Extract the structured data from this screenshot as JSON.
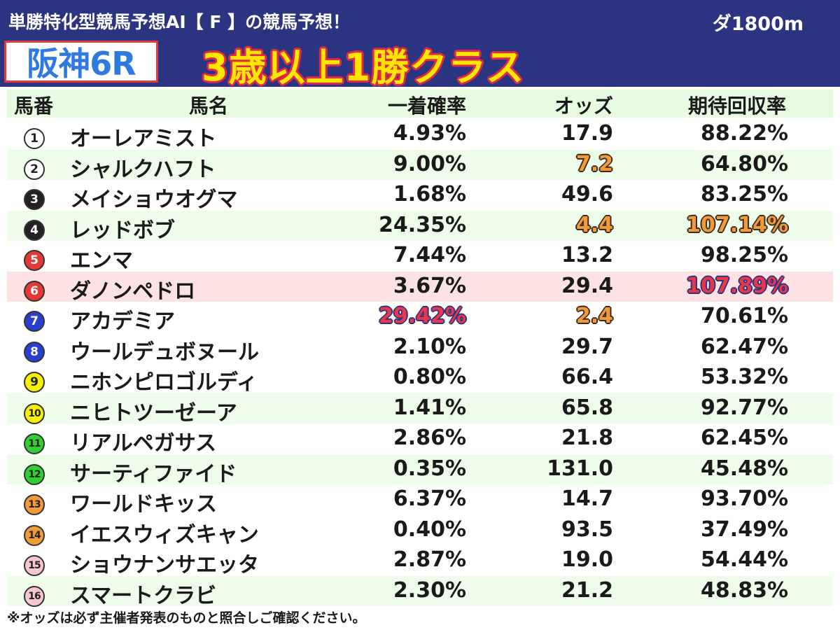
{
  "header": {
    "subtitle": "単勝特化型競馬予想AI【 F 】の競馬予想！",
    "distance": "ダ1800m",
    "race_name": "阪神6R",
    "race_class": "3歳以上1勝クラス"
  },
  "table": {
    "headers": {
      "number": "馬番",
      "name": "馬名",
      "win_prob": "一着確率",
      "odds": "オッズ",
      "roi": "期待回収率"
    },
    "rows": [
      {
        "num": "1",
        "name": "オーレアミスト",
        "prob": "4.93%",
        "odds": "17.9",
        "roi": "88.22%",
        "badge_bg": "#ffffff",
        "badge_fg": "#222222"
      },
      {
        "num": "2",
        "name": "シャルクハフト",
        "prob": "9.00%",
        "odds": "7.2",
        "roi": "64.80%",
        "badge_bg": "#ffffff",
        "badge_fg": "#222222"
      },
      {
        "num": "3",
        "name": "メイショウオグマ",
        "prob": "1.68%",
        "odds": "49.6",
        "roi": "83.25%",
        "badge_bg": "#222222",
        "badge_fg": "#ffffff"
      },
      {
        "num": "4",
        "name": "レッドボブ",
        "prob": "24.35%",
        "odds": "4.4",
        "roi": "107.14%",
        "badge_bg": "#222222",
        "badge_fg": "#ffffff"
      },
      {
        "num": "5",
        "name": "エンマ",
        "prob": "7.44%",
        "odds": "13.2",
        "roi": "98.25%",
        "badge_bg": "#e53935",
        "badge_fg": "#ffffff"
      },
      {
        "num": "6",
        "name": "ダノンペドロ",
        "prob": "3.67%",
        "odds": "29.4",
        "roi": "107.89%",
        "badge_bg": "#e53935",
        "badge_fg": "#ffffff"
      },
      {
        "num": "7",
        "name": "アカデミア",
        "prob": "29.42%",
        "odds": "2.4",
        "roi": "70.61%",
        "badge_bg": "#2a3fd0",
        "badge_fg": "#ffffff"
      },
      {
        "num": "8",
        "name": "ウールデュボヌール",
        "prob": "2.10%",
        "odds": "29.7",
        "roi": "62.47%",
        "badge_bg": "#2a3fd0",
        "badge_fg": "#ffffff"
      },
      {
        "num": "9",
        "name": "ニホンピロゴルディ",
        "prob": "0.80%",
        "odds": "66.4",
        "roi": "53.32%",
        "badge_bg": "#f7f000",
        "badge_fg": "#222222"
      },
      {
        "num": "10",
        "name": "ニヒトツーゼーア",
        "prob": "1.41%",
        "odds": "65.8",
        "roi": "92.77%",
        "badge_bg": "#f7f000",
        "badge_fg": "#222222"
      },
      {
        "num": "11",
        "name": "リアルペガサス",
        "prob": "2.86%",
        "odds": "21.8",
        "roi": "62.45%",
        "badge_bg": "#2fd02f",
        "badge_fg": "#222222"
      },
      {
        "num": "12",
        "name": "サーティファイド",
        "prob": "0.35%",
        "odds": "131.0",
        "roi": "45.48%",
        "badge_bg": "#2fd02f",
        "badge_fg": "#222222"
      },
      {
        "num": "13",
        "name": "ワールドキッス",
        "prob": "6.37%",
        "odds": "14.7",
        "roi": "93.70%",
        "badge_bg": "#f09a3a",
        "badge_fg": "#222222"
      },
      {
        "num": "14",
        "name": "イエスウィズキャン",
        "prob": "0.40%",
        "odds": "93.5",
        "roi": "37.49%",
        "badge_bg": "#f09a3a",
        "badge_fg": "#222222"
      },
      {
        "num": "15",
        "name": "ショウナンサエッタ",
        "prob": "2.87%",
        "odds": "19.0",
        "roi": "54.44%",
        "badge_bg": "#f7c7cf",
        "badge_fg": "#222222"
      },
      {
        "num": "16",
        "name": "スマートクラビ",
        "prob": "2.30%",
        "odds": "21.2",
        "roi": "48.83%",
        "badge_bg": "#f7c7cf",
        "badge_fg": "#222222"
      }
    ]
  },
  "highlight_colors": {
    "orange": "#f09a3a",
    "red": "#e8364a",
    "navy": "#2b3480"
  },
  "footnote": "※オッズは必ず主催者発表のものと照合しご確認ください。"
}
